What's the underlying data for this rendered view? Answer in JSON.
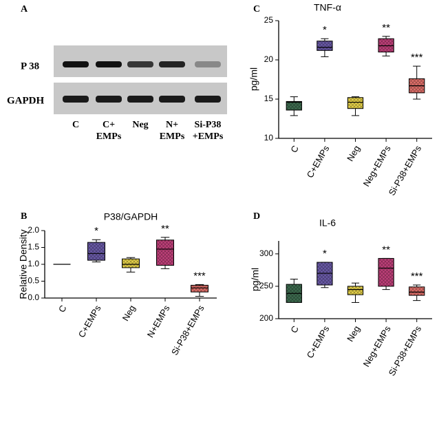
{
  "blot": {
    "panel": "A",
    "rows": [
      "P 38",
      "GAPDH"
    ],
    "lanes": [
      [
        "C"
      ],
      [
        "C+",
        "EMPs"
      ],
      [
        "Neg"
      ],
      [
        "N+",
        "EMPs"
      ],
      [
        "Si-P38",
        "+EMPs"
      ]
    ]
  },
  "chart_data": [
    {
      "type": "box",
      "panel": "B",
      "title": "P38/GAPDH",
      "ylabel": "Relative Density",
      "categories": [
        "C",
        "C+EMPs",
        "Neg",
        "N+EMPs",
        "Si-P38+EMPs"
      ],
      "colors": [
        "#3d6b4f",
        "#6a5aa8",
        "#e6d24a",
        "#c0407a",
        "#e0706a"
      ],
      "boxes": [
        {
          "min": 1.0,
          "q1": 1.0,
          "median": 1.0,
          "q3": 1.0,
          "max": 1.0
        },
        {
          "min": 1.07,
          "q1": 1.12,
          "median": 1.32,
          "q3": 1.65,
          "max": 1.73
        },
        {
          "min": 0.77,
          "q1": 0.9,
          "median": 1.0,
          "q3": 1.16,
          "max": 1.2
        },
        {
          "min": 0.87,
          "q1": 0.97,
          "median": 1.45,
          "q3": 1.72,
          "max": 1.8
        },
        {
          "min": 0.05,
          "q1": 0.18,
          "median": 0.3,
          "q3": 0.38,
          "max": 0.4
        }
      ],
      "annotations": [
        null,
        "*",
        null,
        "**",
        "***"
      ],
      "ylim": [
        0,
        2
      ],
      "yticks": [
        {
          "value": 0,
          "label": "0.0"
        },
        0.5,
        {
          "value": 1,
          "label": "1.0"
        },
        1.5,
        {
          "value": 2,
          "label": "2.0"
        }
      ]
    },
    {
      "type": "box",
      "panel": "C",
      "title": "TNF-α",
      "ylabel": "pg/ml",
      "categories": [
        "C",
        "C+EMPs",
        "Neg",
        "Neg+EMPs",
        "Si-P38+EMPs"
      ],
      "colors": [
        "#3d6b4f",
        "#6a5aa8",
        "#e6d24a",
        "#c0407a",
        "#e0706a"
      ],
      "boxes": [
        {
          "min": 12.9,
          "q1": 13.6,
          "median": 14.6,
          "q3": 14.7,
          "max": 15.3
        },
        {
          "min": 20.4,
          "q1": 21.2,
          "median": 21.6,
          "q3": 22.4,
          "max": 22.7
        },
        {
          "min": 12.9,
          "q1": 13.8,
          "median": 14.6,
          "q3": 15.2,
          "max": 15.3
        },
        {
          "min": 20.5,
          "q1": 21.0,
          "median": 21.8,
          "q3": 22.7,
          "max": 23.0
        },
        {
          "min": 15.0,
          "q1": 15.8,
          "median": 16.7,
          "q3": 17.6,
          "max": 19.2
        }
      ],
      "annotations": [
        null,
        "*",
        null,
        "**",
        "***"
      ],
      "ylim": [
        10,
        25
      ],
      "yticks": [
        10,
        15,
        20,
        25
      ]
    },
    {
      "type": "box",
      "panel": "D",
      "title": "IL-6",
      "ylabel": "pg/ml",
      "categories": [
        "C",
        "C+EMPs",
        "Neg",
        "Neg+EMPs",
        "Si-P38+EMPs"
      ],
      "colors": [
        "#3d6b4f",
        "#6a5aa8",
        "#e6d24a",
        "#c0407a",
        "#e0706a"
      ],
      "boxes": [
        {
          "min": 225,
          "q1": 225,
          "median": 239,
          "q3": 253,
          "max": 261
        },
        {
          "min": 248,
          "q1": 252,
          "median": 270,
          "q3": 287,
          "max": 287
        },
        {
          "min": 225,
          "q1": 237,
          "median": 245,
          "q3": 250,
          "max": 255
        },
        {
          "min": 245,
          "q1": 250,
          "median": 278,
          "q3": 293,
          "max": 293
        },
        {
          "min": 228,
          "q1": 236,
          "median": 241,
          "q3": 249,
          "max": 252
        }
      ],
      "annotations": [
        null,
        "*",
        null,
        "**",
        "***"
      ],
      "ylim": [
        200,
        320
      ],
      "yticks": [
        200,
        250,
        300
      ]
    }
  ]
}
